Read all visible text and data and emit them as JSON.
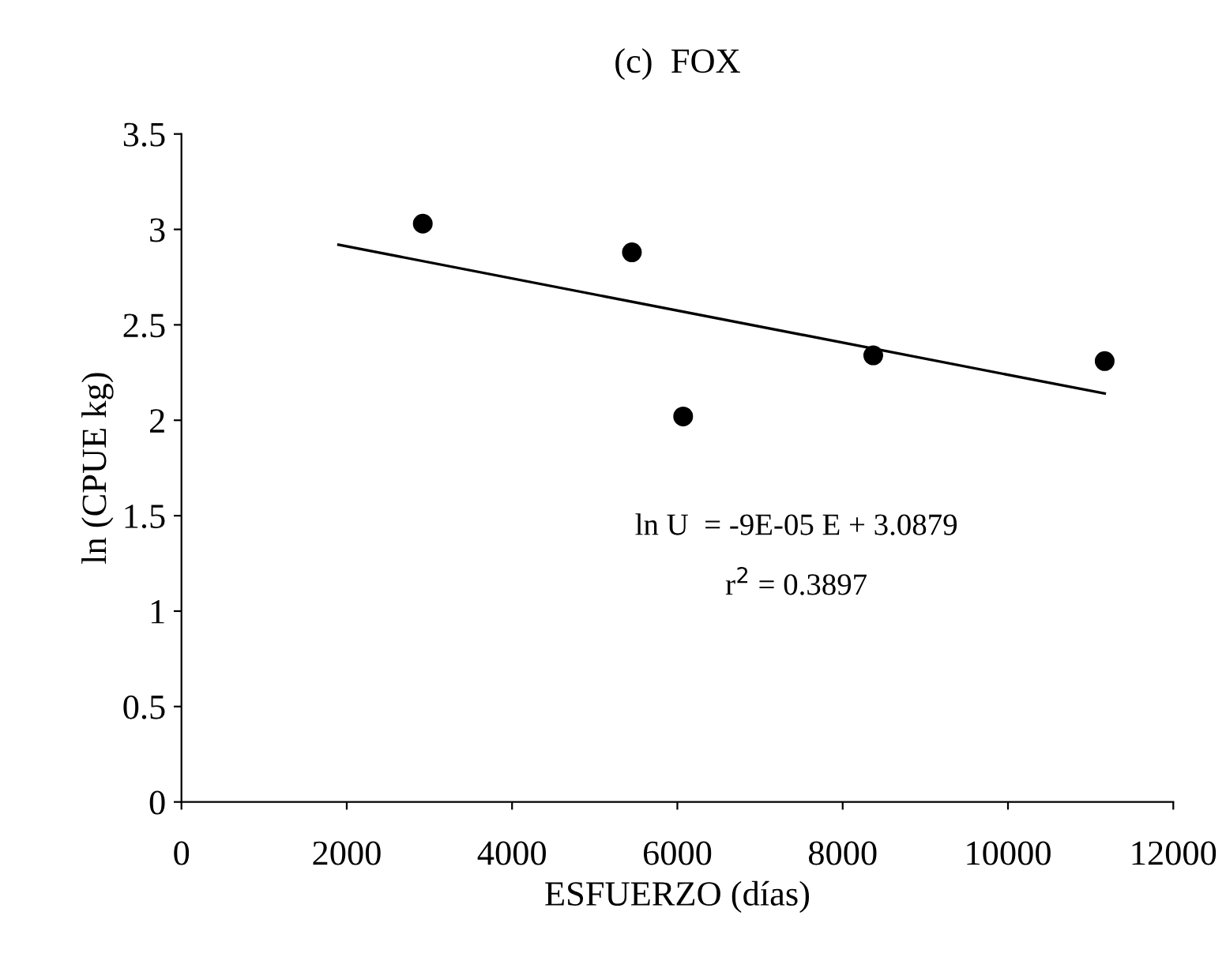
{
  "chart_data": {
    "type": "scatter",
    "title": "(c)  FOX",
    "xlabel": "ESFUERZO (días)",
    "ylabel": "ln (CPUE kg)",
    "series": [
      {
        "color": "#000000",
        "marker": "circle",
        "x": [
          2920,
          5450,
          6070,
          8370,
          11170
        ],
        "values": [
          3.03,
          2.88,
          2.02,
          2.34,
          2.31
        ]
      },
      {
        "type": "line",
        "color": "#000000",
        "line_style": "solid",
        "x": [
          1900,
          11170
        ],
        "values": [
          2.92,
          2.14
        ]
      }
    ],
    "annotations": [
      "ln U  = -9E-05 E + 3.0879",
      "r$^{2}$ = 0.3897"
    ],
    "xlim": [
      0,
      12000
    ],
    "xticks": [
      0,
      2000,
      4000,
      6000,
      8000,
      10000,
      12000
    ],
    "ylim": [
      0,
      3.5
    ],
    "yticks": [
      0,
      0.5,
      1,
      1.5,
      2,
      2.5,
      3,
      3.5
    ],
    "grid": false,
    "legend": false
  }
}
